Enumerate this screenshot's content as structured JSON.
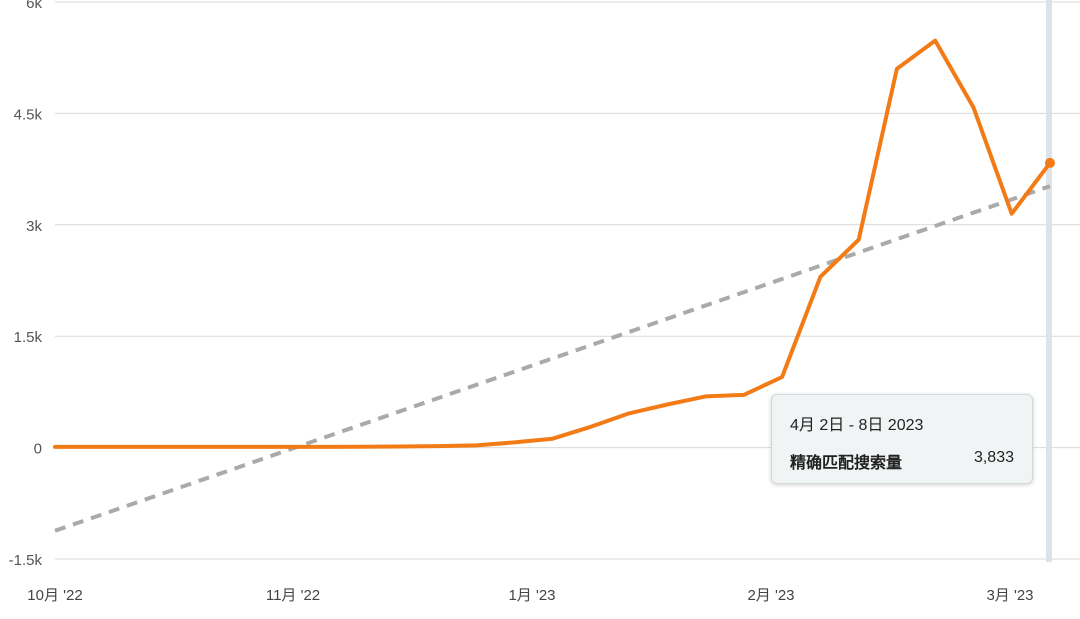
{
  "chart_data": {
    "type": "line",
    "x_labels": [
      "10月 '22",
      "11月 '22",
      "1月 '23",
      "2月 '23",
      "3月 '23"
    ],
    "y_ticks": [
      -1500,
      0,
      1500,
      3000,
      4500,
      6000
    ],
    "y_tick_labels": [
      "-1.5k",
      "0",
      "1.5k",
      "3k",
      "4.5k",
      "6k"
    ],
    "ylim": [
      -1500,
      6000
    ],
    "grid": true,
    "series": [
      {
        "color": "#f27b16",
        "values": [
          10,
          10,
          10,
          10,
          10,
          10,
          10,
          10,
          12,
          15,
          20,
          30,
          70,
          120,
          280,
          460,
          580,
          690,
          710,
          950,
          2300,
          2800,
          5100,
          5480,
          4580,
          3150,
          3833
        ]
      }
    ],
    "trendline": {
      "color": "#aaaaaa",
      "start": -1120,
      "end": 3520
    },
    "tooltip": {
      "date": "4月 2日 - 8日 2023",
      "metric": "精确匹配搜索量",
      "value": "3,833"
    }
  }
}
